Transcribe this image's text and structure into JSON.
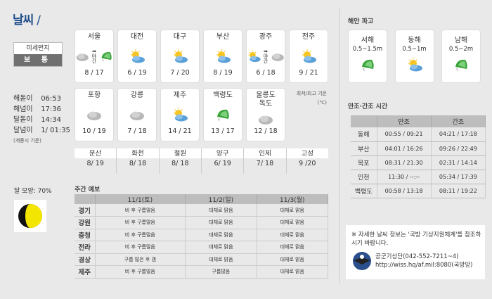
{
  "header": {
    "title": "날씨"
  },
  "fine_dust": {
    "label": "미세먼지",
    "value": "보 통"
  },
  "sun_moon": {
    "rows": [
      {
        "label": "해돋이",
        "value": "06:53"
      },
      {
        "label": "해넘이",
        "value": "17:36"
      },
      {
        "label": "달돋이",
        "value": "14:34"
      },
      {
        "label": "달넘이",
        "value": "1/ 01:35"
      }
    ],
    "note": "(계룡시 기준)",
    "moon_phase_label": "달 모양:",
    "moon_phase_value": "70%",
    "moon_phase_fraction": 0.7
  },
  "cities": [
    {
      "name": "서울",
      "temp": "8 / 17",
      "icons": [
        "cloud-sun",
        "umbrella"
      ],
      "transition": "야간"
    },
    {
      "name": "대전",
      "temp": "6 / 19",
      "icons": [
        "suncloud"
      ]
    },
    {
      "name": "대구",
      "temp": "7 / 20",
      "icons": [
        "suncloud"
      ]
    },
    {
      "name": "부산",
      "temp": "8 / 19",
      "icons": [
        "suncloud"
      ]
    },
    {
      "name": "광주",
      "temp": "6 / 18",
      "icons": [
        "suncloud",
        "cloud-sun"
      ],
      "transition": "야간"
    },
    {
      "name": "전주",
      "temp": "9 / 21",
      "icons": [
        "suncloud"
      ]
    },
    {
      "name": "포항",
      "temp": "10 / 19",
      "icons": [
        "cloud"
      ]
    },
    {
      "name": "강릉",
      "temp": "7 / 18",
      "icons": [
        "cloud"
      ]
    },
    {
      "name": "제주",
      "temp": "14 / 21",
      "icons": [
        "suncloud"
      ]
    },
    {
      "name": "백령도",
      "temp": "13 / 17",
      "icons": [
        "umbrella"
      ]
    },
    {
      "name": "울릉도\n독도",
      "temp": "12 / 18",
      "icons": [
        "cloud"
      ]
    }
  ],
  "temp_unit_note": "최저/최고 기온 (℃)",
  "small_cities": [
    {
      "name": "문산",
      "temp": "8/ 19"
    },
    {
      "name": "화천",
      "temp": "8/ 18"
    },
    {
      "name": "철원",
      "temp": "8/ 18"
    },
    {
      "name": "양구",
      "temp": "6/ 19"
    },
    {
      "name": "인제",
      "temp": "7/ 18"
    },
    {
      "name": "고성",
      "temp": "9 /20"
    }
  ],
  "weekly": {
    "title": "주간 예보",
    "days": [
      "11/1(토)",
      "11/2(일)",
      "11/3(월)"
    ],
    "rows": [
      {
        "region": "경기",
        "values": [
          "비 후 구름많음",
          "대체로 맑음",
          "대체로 맑음"
        ]
      },
      {
        "region": "강원",
        "values": [
          "비 후 구름많음",
          "대체로 맑음",
          "대체로 맑음"
        ]
      },
      {
        "region": "충청",
        "values": [
          "비 후 구름많음",
          "대체로 맑음",
          "대체로 맑음"
        ]
      },
      {
        "region": "전라",
        "values": [
          "비 후 구름많음",
          "대체로 맑음",
          "대체로 맑음"
        ]
      },
      {
        "region": "경상",
        "values": [
          "구름 많은 후 갬",
          "대체로 맑음",
          "대체로 맑음"
        ]
      },
      {
        "region": "제주",
        "values": [
          "비 후 구름많음",
          "구름많음",
          "대체로 맑음"
        ]
      }
    ]
  },
  "waves": {
    "title": "해안 파고",
    "items": [
      {
        "name": "서해",
        "height": "0.5~1.5m",
        "icon": "umbrella"
      },
      {
        "name": "동해",
        "height": "0.5~1m",
        "icon": "suncloud"
      },
      {
        "name": "남해",
        "height": "0.5~2m",
        "icon": "umbrella"
      }
    ]
  },
  "tide": {
    "title": "만조·간조 시간",
    "headers": [
      "",
      "만조",
      "간조"
    ],
    "rows": [
      {
        "place": "동해",
        "high": "00:55 / 09:21",
        "low": "04:21 / 17:18"
      },
      {
        "place": "부산",
        "high": "04:01 / 16:26",
        "low": "09:26 / 22:49"
      },
      {
        "place": "목포",
        "high": "08:31 / 21:30",
        "low": "02:31 / 14:14"
      },
      {
        "place": "인천",
        "high": "11:30 / --:--",
        "low": "05:34 / 17:39"
      },
      {
        "place": "백령도",
        "high": "00:58 / 13:18",
        "low": "08:11 / 19:22"
      }
    ]
  },
  "info": {
    "notice": "※ 자세한 날씨 정보는 '국방 기상지원체계'를 참조하시기 바랍니다.",
    "contact": "공군기상단(042-552-7211~4)",
    "url": "http://wiss.hq/af.mil:8080(국방망)"
  }
}
